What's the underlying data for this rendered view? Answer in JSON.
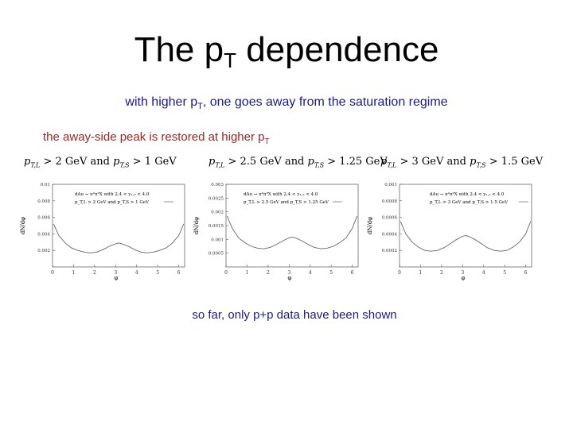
{
  "slide": {
    "title_main": "The p",
    "title_sub": "T",
    "title_rest": " dependence",
    "subtitle_main": "with higher p",
    "subtitle_sub": "T",
    "subtitle_rest": ", one goes away from the saturation regime",
    "note_main": "the away-side peak is restored at higher p",
    "note_sub": "T",
    "footer": "so far, only p+p data have been shown"
  },
  "panels": [
    {
      "cut_L": "> 2 GeV",
      "cut_S": "> 1 GeV",
      "and": "and",
      "legend_line1": "dAu → π⁰π⁰X with 2.4 < y₁,₂ < 4.0",
      "legend_line2": "p_T,L > 2 GeV and p_T,S > 1 GeV",
      "xlabel": "φ",
      "ylabel": "dN/dφ"
    },
    {
      "cut_L": "> 2.5 GeV",
      "cut_S": "> 1.25 GeV",
      "and": "and",
      "legend_line1": "dAu → π⁰π⁰X with 2.4 < y₁,₂ < 4.0",
      "legend_line2": "p_T,L > 2.5 GeV and p_T,S > 1.25 GeV",
      "xlabel": "φ",
      "ylabel": "dN/dφ"
    },
    {
      "cut_L": "> 3 GeV",
      "cut_S": "> 1.5 GeV",
      "and": "and",
      "legend_line1": "dAu → π⁰π⁰X with 2.4 < y₁,₂ < 4.0",
      "legend_line2": "p_T,L > 3 GeV and p_T,S > 1.5 GeV",
      "xlabel": "φ",
      "ylabel": "dN/dφ"
    }
  ],
  "chart_data": [
    {
      "type": "line",
      "x_ticks": [
        0,
        1,
        2,
        3,
        4,
        5,
        6
      ],
      "y_ticks": [
        0.002,
        0.004,
        0.006,
        0.008,
        0.01
      ],
      "xlim": [
        0,
        6.28
      ],
      "ylim": [
        0,
        0.01
      ],
      "series": [
        {
          "x": [
            0.05,
            0.3,
            0.6,
            0.9,
            1.2,
            1.5,
            1.8,
            2.1,
            2.4,
            2.7,
            3.0,
            3.14,
            3.3,
            3.6,
            3.9,
            4.2,
            4.5,
            4.8,
            5.1,
            5.4,
            5.7,
            6.0,
            6.23
          ],
          "y": [
            0.0052,
            0.0038,
            0.0029,
            0.0023,
            0.002,
            0.0018,
            0.0017,
            0.0018,
            0.0021,
            0.0025,
            0.0028,
            0.0029,
            0.0028,
            0.0025,
            0.0021,
            0.0018,
            0.0017,
            0.0018,
            0.002,
            0.0023,
            0.0029,
            0.0038,
            0.0052
          ]
        }
      ]
    },
    {
      "type": "line",
      "x_ticks": [
        0,
        1,
        2,
        3,
        4,
        5,
        6
      ],
      "y_ticks": [
        0.0005,
        0.001,
        0.0015,
        0.002,
        0.0025,
        0.003
      ],
      "xlim": [
        0,
        6.28
      ],
      "ylim": [
        0,
        0.003
      ],
      "series": [
        {
          "x": [
            0.05,
            0.3,
            0.6,
            0.9,
            1.2,
            1.5,
            1.8,
            2.1,
            2.4,
            2.7,
            3.0,
            3.14,
            3.3,
            3.6,
            3.9,
            4.2,
            4.5,
            4.8,
            5.1,
            5.4,
            5.7,
            6.0,
            6.23
          ],
          "y": [
            0.00185,
            0.0014,
            0.00105,
            0.00088,
            0.00075,
            0.00068,
            0.00066,
            0.00071,
            0.00082,
            0.00095,
            0.00106,
            0.00108,
            0.00106,
            0.00095,
            0.00082,
            0.00071,
            0.00066,
            0.00068,
            0.00075,
            0.00088,
            0.00105,
            0.0014,
            0.00185
          ]
        }
      ]
    },
    {
      "type": "line",
      "x_ticks": [
        0,
        1,
        2,
        3,
        4,
        5,
        6
      ],
      "y_ticks": [
        0.0002,
        0.0004,
        0.0006,
        0.0008,
        0.001
      ],
      "xlim": [
        0,
        6.28
      ],
      "ylim": [
        0,
        0.001
      ],
      "series": [
        {
          "x": [
            0.05,
            0.3,
            0.6,
            0.9,
            1.2,
            1.5,
            1.8,
            2.1,
            2.4,
            2.7,
            3.0,
            3.14,
            3.3,
            3.6,
            3.9,
            4.2,
            4.5,
            4.8,
            5.1,
            5.4,
            5.7,
            6.0,
            6.23
          ],
          "y": [
            0.00055,
            0.0004,
            0.0003,
            0.00024,
            0.0002,
            0.00019,
            0.0002,
            0.00023,
            0.00028,
            0.00033,
            0.00037,
            0.00038,
            0.00037,
            0.00033,
            0.00028,
            0.00023,
            0.0002,
            0.00019,
            0.0002,
            0.00024,
            0.0003,
            0.0004,
            0.00055
          ]
        }
      ]
    }
  ]
}
